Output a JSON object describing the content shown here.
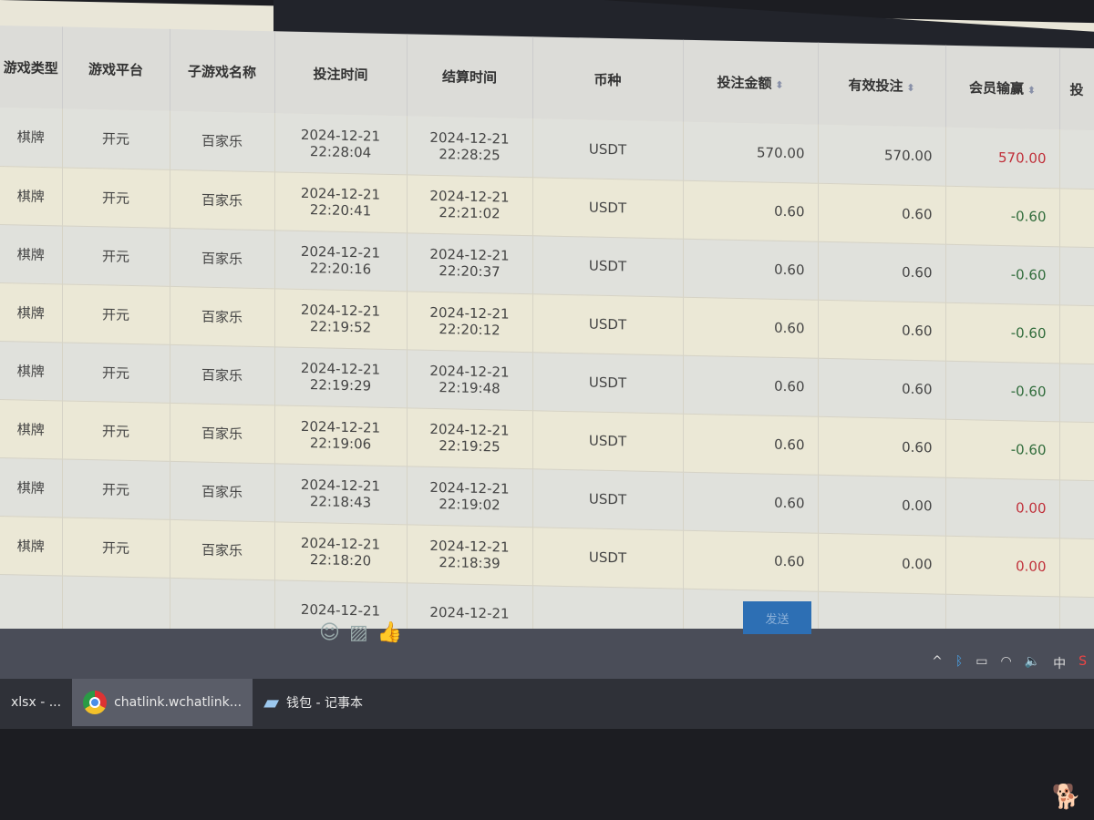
{
  "table": {
    "headers": [
      "游戏类型",
      "游戏平台",
      "子游戏名称",
      "投注时间",
      "结算时间",
      "币种",
      "投注金额",
      "有效投注",
      "会员输赢",
      "投"
    ],
    "rows": [
      {
        "type": "棋牌",
        "platform": "开元",
        "game": "百家乐",
        "bet_date": "2024-12-21",
        "bet_time": "22:28:04",
        "settle_date": "2024-12-21",
        "settle_time": "22:28:25",
        "currency": "USDT",
        "amount": "570.00",
        "valid": "570.00",
        "win": "570.00",
        "win_color": "red"
      },
      {
        "type": "棋牌",
        "platform": "开元",
        "game": "百家乐",
        "bet_date": "2024-12-21",
        "bet_time": "22:20:41",
        "settle_date": "2024-12-21",
        "settle_time": "22:21:02",
        "currency": "USDT",
        "amount": "0.60",
        "valid": "0.60",
        "win": "-0.60",
        "win_color": "green"
      },
      {
        "type": "棋牌",
        "platform": "开元",
        "game": "百家乐",
        "bet_date": "2024-12-21",
        "bet_time": "22:20:16",
        "settle_date": "2024-12-21",
        "settle_time": "22:20:37",
        "currency": "USDT",
        "amount": "0.60",
        "valid": "0.60",
        "win": "-0.60",
        "win_color": "green"
      },
      {
        "type": "棋牌",
        "platform": "开元",
        "game": "百家乐",
        "bet_date": "2024-12-21",
        "bet_time": "22:19:52",
        "settle_date": "2024-12-21",
        "settle_time": "22:20:12",
        "currency": "USDT",
        "amount": "0.60",
        "valid": "0.60",
        "win": "-0.60",
        "win_color": "green"
      },
      {
        "type": "棋牌",
        "platform": "开元",
        "game": "百家乐",
        "bet_date": "2024-12-21",
        "bet_time": "22:19:29",
        "settle_date": "2024-12-21",
        "settle_time": "22:19:48",
        "currency": "USDT",
        "amount": "0.60",
        "valid": "0.60",
        "win": "-0.60",
        "win_color": "green"
      },
      {
        "type": "棋牌",
        "platform": "开元",
        "game": "百家乐",
        "bet_date": "2024-12-21",
        "bet_time": "22:19:06",
        "settle_date": "2024-12-21",
        "settle_time": "22:19:25",
        "currency": "USDT",
        "amount": "0.60",
        "valid": "0.60",
        "win": "-0.60",
        "win_color": "green"
      },
      {
        "type": "棋牌",
        "platform": "开元",
        "game": "百家乐",
        "bet_date": "2024-12-21",
        "bet_time": "22:18:43",
        "settle_date": "2024-12-21",
        "settle_time": "22:19:02",
        "currency": "USDT",
        "amount": "0.60",
        "valid": "0.00",
        "win": "0.00",
        "win_color": "red"
      },
      {
        "type": "棋牌",
        "platform": "开元",
        "game": "百家乐",
        "bet_date": "2024-12-21",
        "bet_time": "22:18:20",
        "settle_date": "2024-12-21",
        "settle_time": "22:18:39",
        "currency": "USDT",
        "amount": "0.60",
        "valid": "0.00",
        "win": "0.00",
        "win_color": "red"
      }
    ],
    "partial_row": {
      "bet_date": "2024-12-21",
      "settle_date": "2024-12-21"
    }
  },
  "chat": {
    "send_label": "发送",
    "icons": [
      "smile-icon",
      "image-icon",
      "thumbs-up-icon"
    ]
  },
  "taskbar": {
    "items": [
      {
        "label": "xlsx - ..."
      },
      {
        "label": "chatlink.wchatlink...",
        "icon": "chrome-icon"
      },
      {
        "label": "钱包 - 记事本",
        "icon": "notepad-icon"
      }
    ],
    "ime": "中"
  },
  "colors": {
    "negative": "#2f6b3a",
    "positive": "#c0303a",
    "send": "#2d6fb4"
  }
}
